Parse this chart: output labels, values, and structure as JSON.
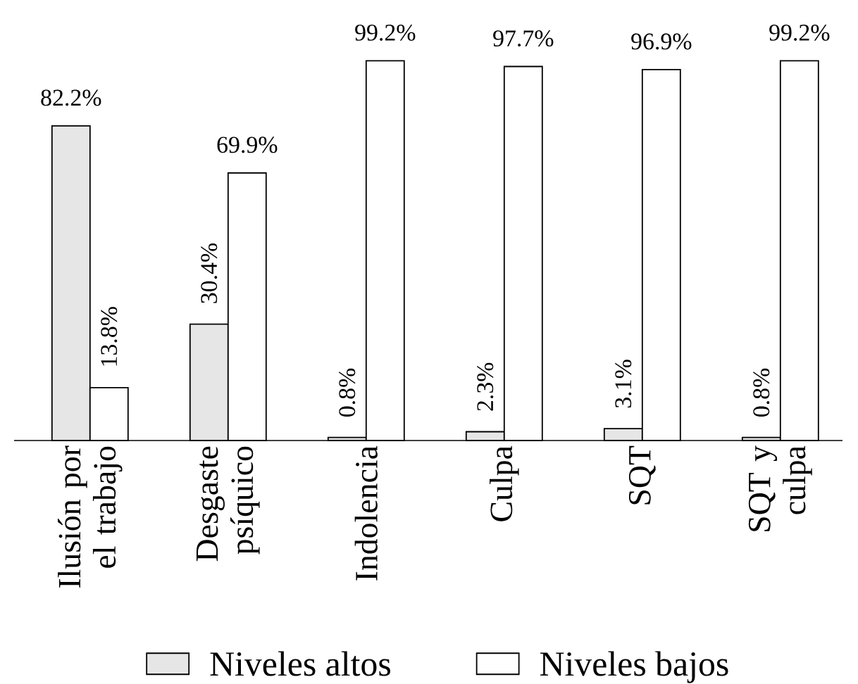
{
  "chart_data": {
    "type": "bar",
    "categories": [
      "Ilusión por el trabajo",
      "Desgaste psíquico",
      "Indolencia",
      "Culpa",
      "SQT",
      "SQT y culpa"
    ],
    "series": [
      {
        "name": "Niveles altos",
        "color": "#e6e6e6",
        "values": [
          82.2,
          30.4,
          0.8,
          2.3,
          3.1,
          0.8
        ],
        "value_labels": [
          "82.2%",
          "30.4%",
          "0.8%",
          "2.3%",
          "3.1%",
          "0.8%"
        ]
      },
      {
        "name": "Niveles bajos",
        "color": "#ffffff",
        "values": [
          13.8,
          69.9,
          99.2,
          97.7,
          96.9,
          99.2
        ],
        "value_labels": [
          "13.8%",
          "69.9%",
          "99.2%",
          "97.7%",
          "96.9%",
          "99.2%"
        ]
      }
    ],
    "ylim": [
      0,
      100
    ],
    "tick_labels": "x",
    "legend": "bottom"
  }
}
